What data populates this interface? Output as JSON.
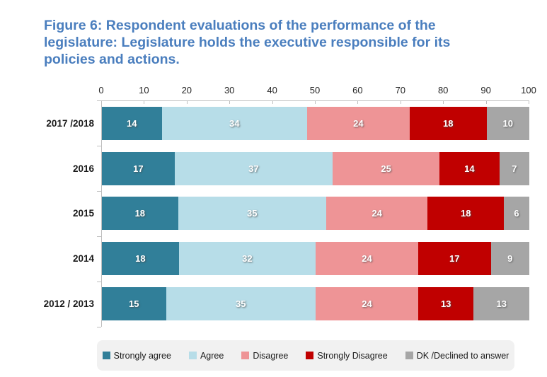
{
  "chart_data": {
    "type": "bar",
    "orientation": "horizontal",
    "stacked": true,
    "title": "Figure 6: Respondent evaluations of the performance of the legislature: Legislature holds the executive responsible for its policies and actions.",
    "xlabel": "",
    "ylabel": "",
    "xlim": [
      0,
      100
    ],
    "x_ticks": [
      0,
      10,
      20,
      30,
      40,
      50,
      60,
      70,
      80,
      90,
      100
    ],
    "grid": false,
    "legend_position": "bottom",
    "value_labels": "inside, white bold",
    "categories": [
      "2017 /2018",
      "2016",
      "2015",
      "2014",
      "2012 / 2013"
    ],
    "series": [
      {
        "name": "Strongly agree",
        "color": "#317F99",
        "values": [
          14,
          17,
          18,
          18,
          15
        ]
      },
      {
        "name": "Agree",
        "color": "#B7DDE8",
        "values": [
          34,
          37,
          35,
          32,
          35
        ]
      },
      {
        "name": "Disagree",
        "color": "#EE9496",
        "values": [
          24,
          25,
          24,
          24,
          24
        ]
      },
      {
        "name": "Strongly Disagree",
        "color": "#C00000",
        "values": [
          18,
          14,
          18,
          17,
          13
        ]
      },
      {
        "name": "DK /Declined to answer",
        "color": "#A6A6A6",
        "values": [
          10,
          7,
          6,
          9,
          13
        ]
      }
    ]
  },
  "style": {
    "title_color": "#4A7EBE",
    "axis_color": "#BFBFBF",
    "legend_background": "#F1F1F1",
    "bar_value_text_color": "#FFFFFF"
  }
}
